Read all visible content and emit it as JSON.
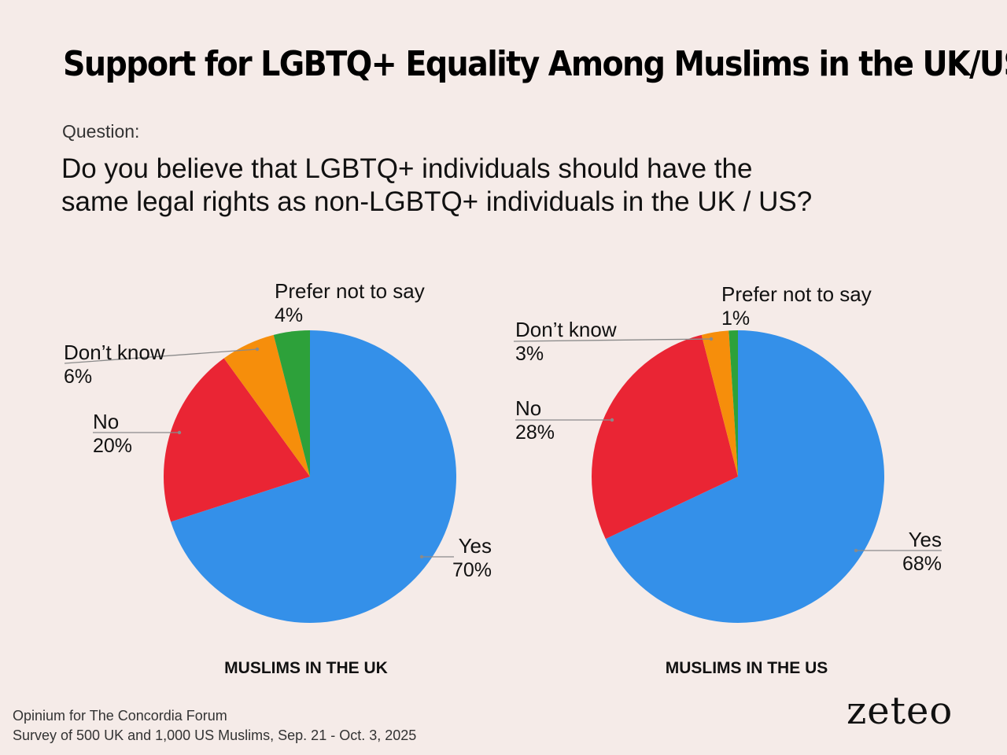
{
  "title": "Support for LGBTQ+ Equality Among Muslims in the UK/US",
  "question_label": "Question:",
  "question_line1": "Do you believe that LGBTQ+ individuals should have the",
  "question_line2": "same legal rights as non-LGBTQ+ individuals in the UK / US?",
  "chart_data": [
    {
      "type": "pie",
      "title": "MUSLIMS IN THE UK",
      "categories": [
        "Yes",
        "No",
        "Don’t know",
        "Prefer not to say"
      ],
      "values": [
        70,
        20,
        6,
        4
      ],
      "value_labels": [
        "70%",
        "20%",
        "6%",
        "4%"
      ],
      "colors": [
        "#3490e9",
        "#ea2534",
        "#f68e0b",
        "#2da13a"
      ]
    },
    {
      "type": "pie",
      "title": "MUSLIMS IN THE US",
      "categories": [
        "Yes",
        "No",
        "Don’t know",
        "Prefer not to say"
      ],
      "values": [
        68,
        28,
        3,
        1
      ],
      "value_labels": [
        "68%",
        "28%",
        "3%",
        "1%"
      ],
      "colors": [
        "#3490e9",
        "#ea2534",
        "#f68e0b",
        "#2da13a"
      ]
    }
  ],
  "source_line1": "Opinium for The Concordia Forum",
  "source_line2": "Survey of 500 UK and 1,000 US Muslims, Sep. 21 - Oct. 3, 2025",
  "logo": "zeteo"
}
